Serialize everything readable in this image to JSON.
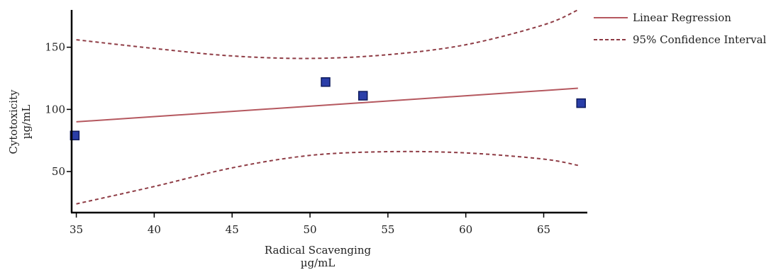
{
  "chart_data": {
    "type": "scatter",
    "title": "",
    "xlabel": "Radical Scavenging",
    "xunit": "µg/mL",
    "ylabel": "Cytotoxicity",
    "yunit": "µg/mL",
    "xlim": [
      34.7,
      67.8
    ],
    "ylim": [
      17,
      180
    ],
    "xticks": [
      35,
      40,
      45,
      50,
      55,
      60,
      65
    ],
    "yticks": [
      50,
      100,
      150
    ],
    "grid": false,
    "legend_position": "top-right",
    "points": [
      {
        "x": 34.9,
        "y": 79
      },
      {
        "x": 51.0,
        "y": 122
      },
      {
        "x": 53.4,
        "y": 111
      },
      {
        "x": 67.4,
        "y": 105
      }
    ],
    "series": [
      {
        "name": "Linear Regression",
        "style": "solid",
        "color": "#b5585f",
        "x": [
          35,
          67.2
        ],
        "y": [
          90,
          117
        ]
      },
      {
        "name": "95% Confidence Interval",
        "style": "dashed",
        "color": "#8e3b44",
        "upper": {
          "x": [
            35,
            40,
            45,
            50,
            55,
            60,
            65,
            67.2
          ],
          "y": [
            156,
            149,
            143,
            141,
            144,
            152,
            168,
            180
          ]
        },
        "lower": {
          "x": [
            35,
            40,
            45,
            50,
            55,
            60,
            65,
            67.2
          ],
          "y": [
            24,
            38,
            53,
            63,
            66,
            65,
            60,
            55
          ]
        }
      }
    ],
    "marker_color": "#2a3ea8"
  }
}
